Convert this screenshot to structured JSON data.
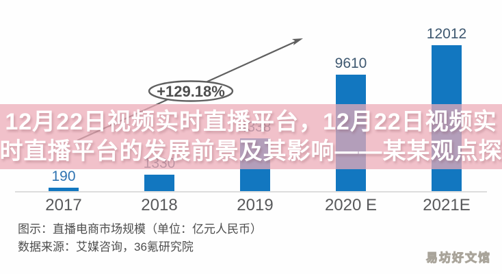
{
  "overlay": {
    "line1": "12月22日视频实时直播平台，12月22日视频实",
    "line2": "时直播平台的发展前景及其影响——某某观点探",
    "band_color": "#F2C3CB",
    "text_color": "#FFFFFF"
  },
  "annotation": {
    "label": "+129.18%"
  },
  "chart_data": {
    "type": "bar",
    "title": "直播电商市场规模",
    "unit": "亿元人民币",
    "categories": [
      "2017",
      "2018",
      "2019",
      "2020 E",
      "2021E"
    ],
    "values": [
      190,
      1330,
      4338,
      9610,
      12012
    ],
    "value_labels": [
      "190",
      "1330",
      "4338",
      "9610",
      "12012"
    ],
    "value_label_colors": [
      "#2E73B1",
      "#3E5870",
      "#3E5870",
      "#3E5870",
      "#3E5870"
    ],
    "bar_color": "#1277C0",
    "xlabel": "",
    "ylabel": "",
    "ylim": [
      0,
      12500
    ],
    "grid": false,
    "legend": false,
    "annotation": "+129.18%"
  },
  "caption": {
    "line1": "图示：直播电商市场规模（单位：亿元人民币）",
    "line2": "数据来源：艾媒咨询，36氪研究院"
  },
  "watermark": "易坊好文馆",
  "colors": {
    "bar_blue": "#1277C0",
    "axis_gray": "#DCDCDC",
    "year_label_gray": "#58595B",
    "caption_gray": "#4D4D4D",
    "arrow_gray": "#5F5F5F"
  }
}
